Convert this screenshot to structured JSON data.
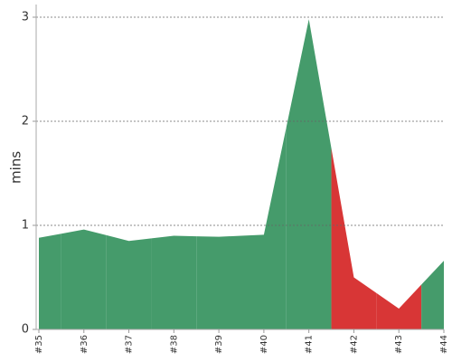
{
  "chart_data": {
    "type": "area",
    "ylabel": "mins",
    "categories": [
      "#35",
      "#36",
      "#37",
      "#38",
      "#39",
      "#40",
      "#41",
      "#42",
      "#43",
      "#44"
    ],
    "values": [
      0.88,
      0.96,
      0.85,
      0.9,
      0.89,
      0.91,
      2.98,
      0.5,
      0.2,
      0.66
    ],
    "point_colors": [
      "#459b6b",
      "#459b6b",
      "#459b6b",
      "#459b6b",
      "#459b6b",
      "#459b6b",
      "#459b6b",
      "#d83636",
      "#d83636",
      "#459b6b"
    ],
    "ylim": [
      0,
      3
    ],
    "yticks": [
      0,
      1,
      2,
      3
    ],
    "grid": true
  }
}
